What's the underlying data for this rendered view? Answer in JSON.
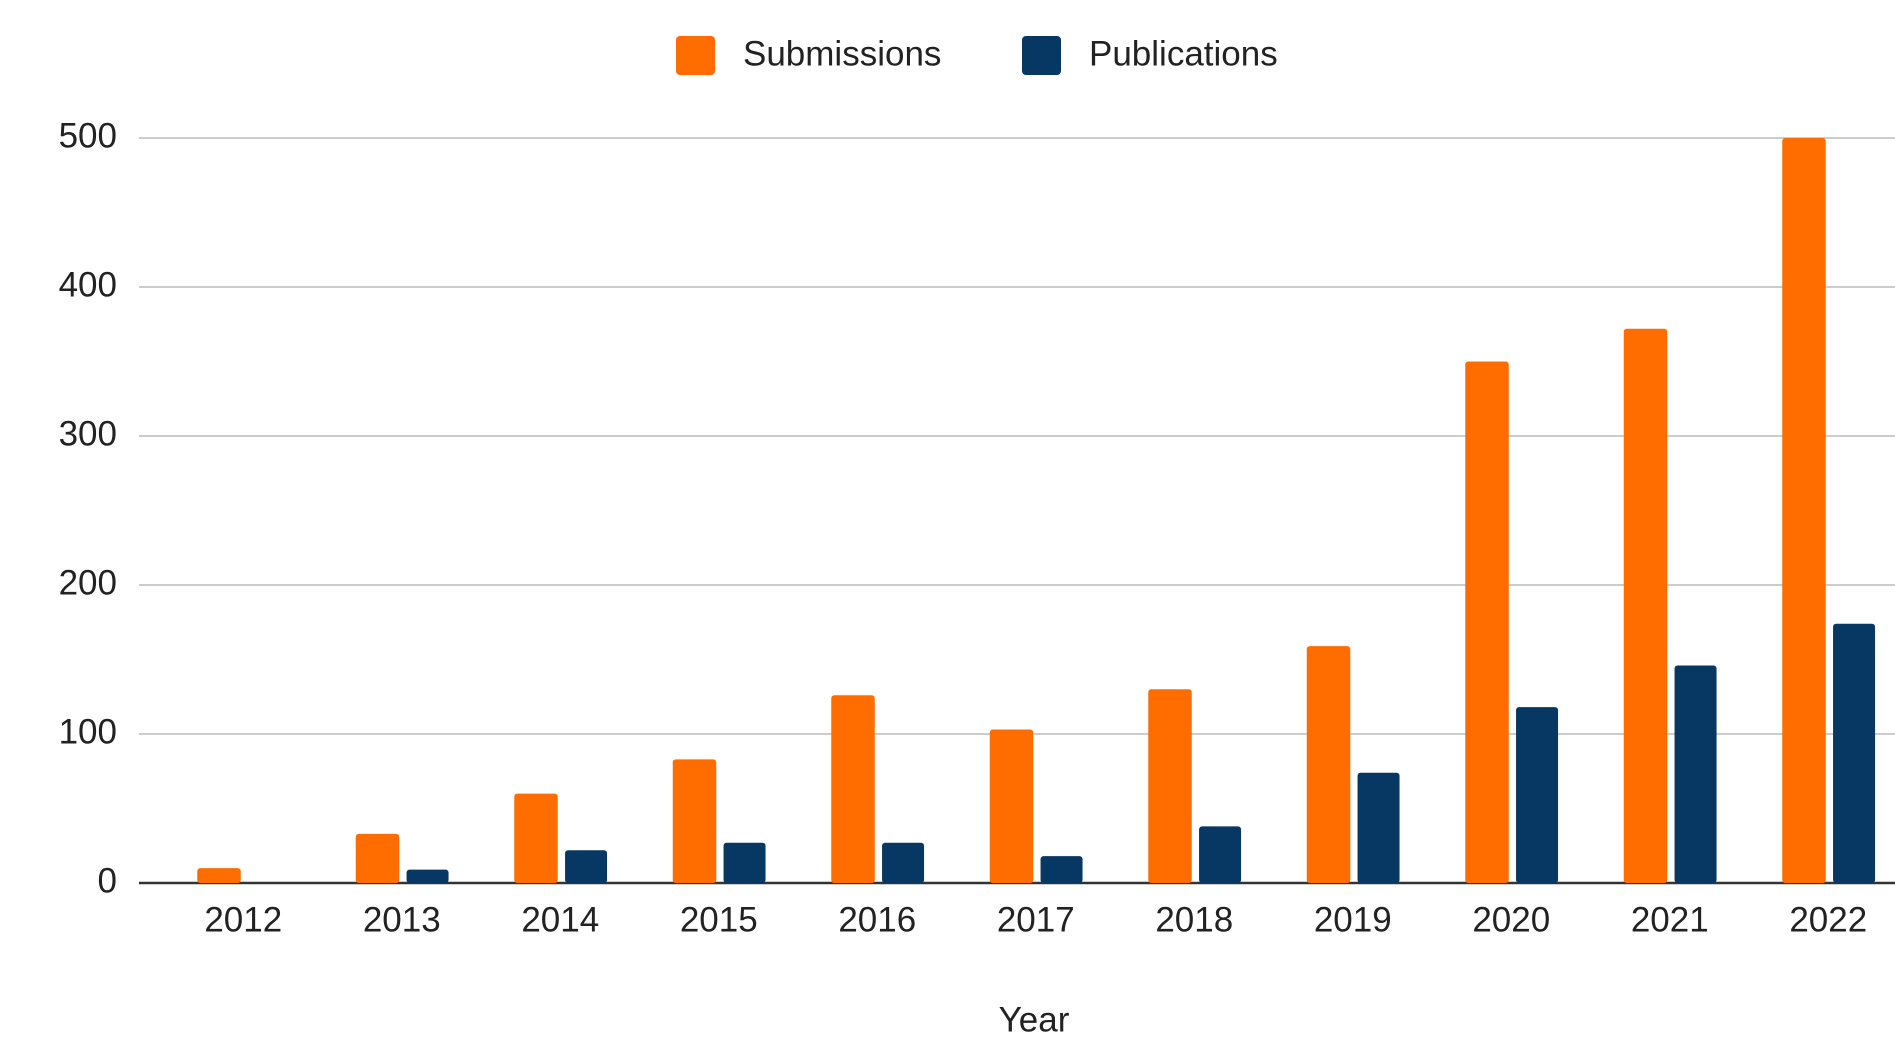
{
  "chart_data": {
    "type": "bar",
    "x_label": "Year",
    "categories": [
      "2012",
      "2013",
      "2014",
      "2015",
      "2016",
      "2017",
      "2018",
      "2019",
      "2020",
      "2021",
      "2022"
    ],
    "series": [
      {
        "name": "Submissions",
        "color": "#ff6d01",
        "values": [
          10,
          33,
          60,
          83,
          126,
          103,
          130,
          159,
          350,
          372,
          500
        ]
      },
      {
        "name": "Publications",
        "color": "#073763",
        "values": [
          0,
          9,
          22,
          27,
          27,
          18,
          38,
          74,
          118,
          146,
          174
        ]
      }
    ],
    "ylim": [
      0,
      500
    ],
    "yticks": [
      0,
      100,
      200,
      300,
      400,
      500
    ],
    "grid": true,
    "legend": "top"
  }
}
